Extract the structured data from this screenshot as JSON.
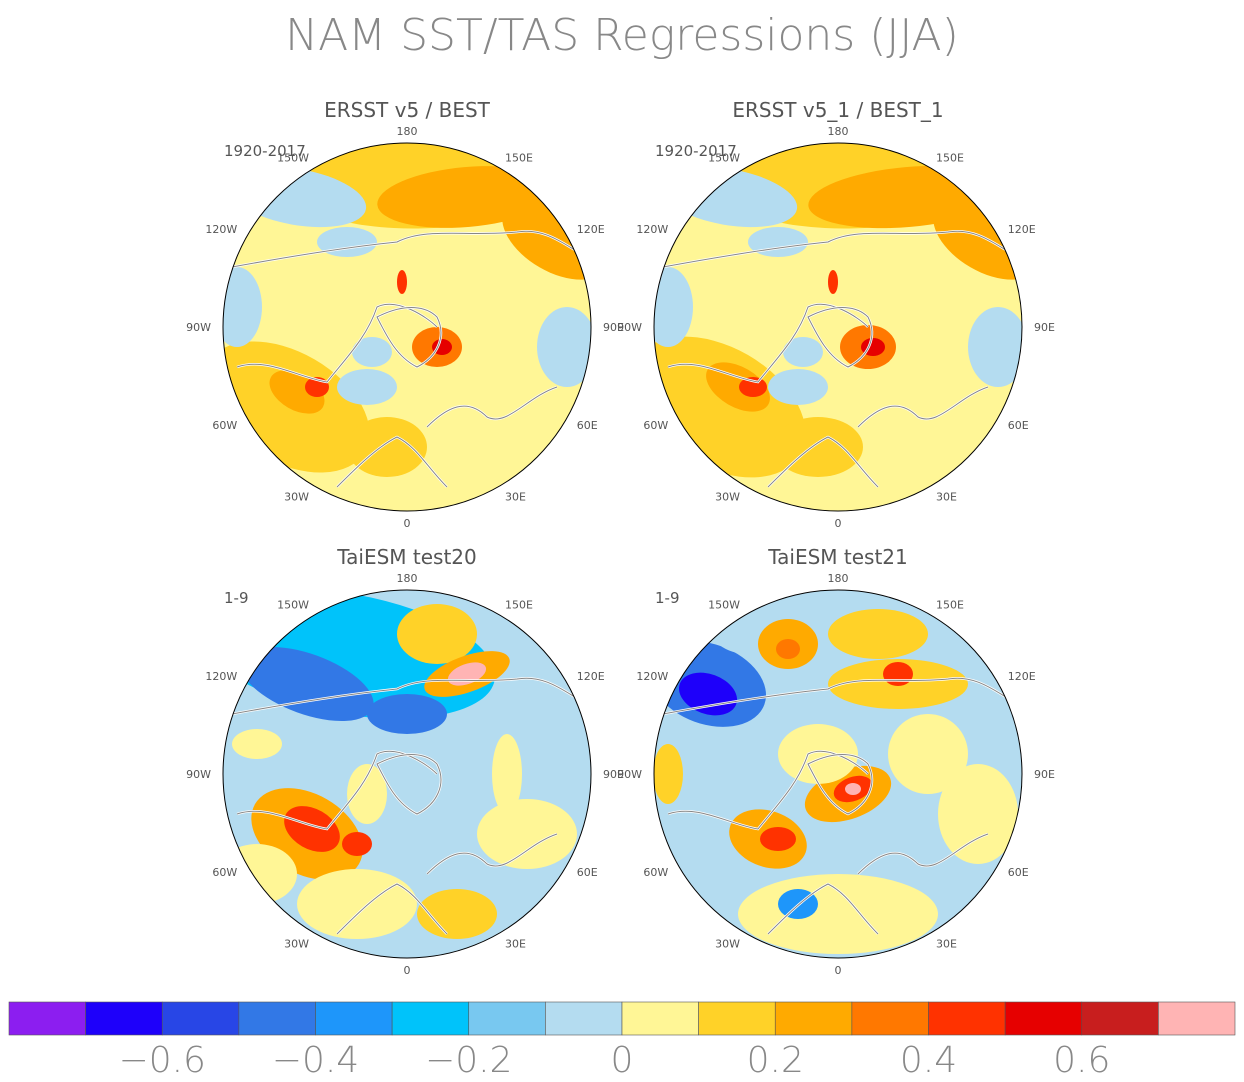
{
  "figure": {
    "title": "NAM SST/TAS Regressions (JJA)"
  },
  "panels": [
    {
      "id": "ersst-v5-best",
      "title": "ERSST v5 / BEST",
      "period": "1920-2017",
      "style": "obs_a"
    },
    {
      "id": "ersst-v5-1-best-1",
      "title": "ERSST v5_1 / BEST_1",
      "period": "1920-2017",
      "style": "obs_b"
    },
    {
      "id": "taiesm-test20",
      "title": "TaiESM test20",
      "period": "1-9",
      "style": "model_a"
    },
    {
      "id": "taiesm-test21",
      "title": "TaiESM test21",
      "period": "1-9",
      "style": "model_b"
    }
  ],
  "longitude_labels": [
    "180",
    "150E",
    "120E",
    "90E",
    "60E",
    "30E",
    "0",
    "30W",
    "60W",
    "90W",
    "120W",
    "150W"
  ],
  "colorbar": {
    "colors": [
      "#8c1ef0",
      "#1e00fa",
      "#2846e6",
      "#3278e6",
      "#1e96fa",
      "#00c3fa",
      "#78c8f0",
      "#b4dcf0",
      "#fff696",
      "#ffd228",
      "#ffaa00",
      "#ff7800",
      "#ff3200",
      "#e60000",
      "#c81e1e",
      "#ffb4b4"
    ],
    "tick_labels": [
      "−0.6",
      "−0.4",
      "−0.2",
      "0",
      "0.2",
      "0.4",
      "0.6"
    ]
  }
}
